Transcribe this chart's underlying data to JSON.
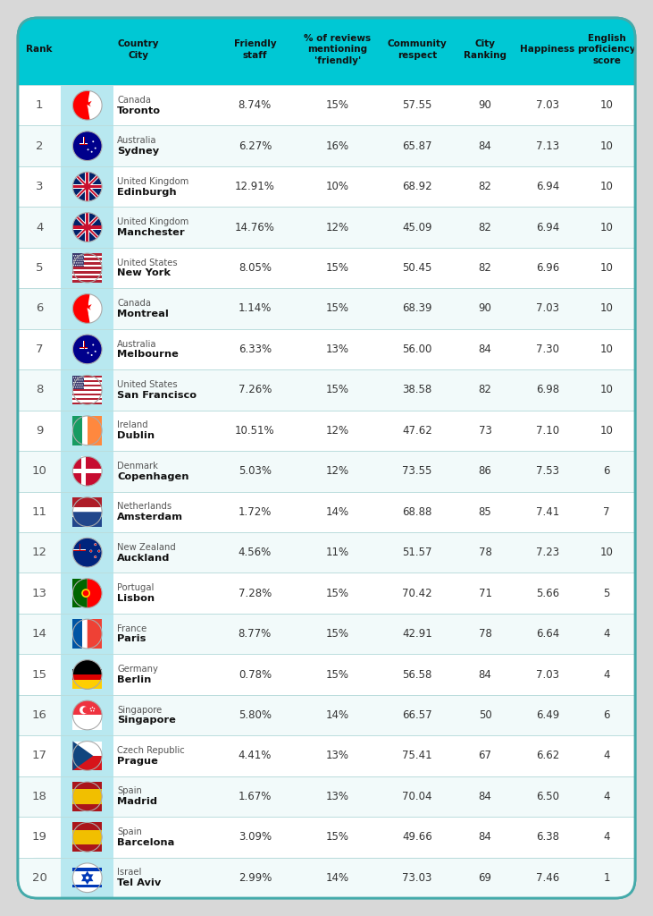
{
  "header_bg": "#00C8D4",
  "row_bg_even": "#FFFFFF",
  "row_bg_odd": "#F2FAFA",
  "flag_col_bg": "#B8E8F0",
  "divider_color": "#BBDDDD",
  "header_text_color": "#111111",
  "body_text_color": "#333333",
  "rank_text_color": "#555555",
  "country_text_color": "#555555",
  "city_text_color": "#111111",
  "outer_border_color": "#44AAAA",
  "outer_bg": "#D8D8D8",
  "headers": [
    "Rank",
    "Country\nCity",
    "Friendly\nstaff",
    "% of reviews\nmentioning\n'friendly'",
    "Community\nrespect",
    "City\nRanking",
    "Happiness",
    "English\nproficiency\nscore"
  ],
  "rows": [
    {
      "rank": 1,
      "country": "Canada",
      "city": "Toronto",
      "friendly_staff": "8.74%",
      "reviews": "15%",
      "community": "57.55",
      "city_ranking": "90",
      "happiness": "7.03",
      "english": "10"
    },
    {
      "rank": 2,
      "country": "Australia",
      "city": "Sydney",
      "friendly_staff": "6.27%",
      "reviews": "16%",
      "community": "65.87",
      "city_ranking": "84",
      "happiness": "7.13",
      "english": "10"
    },
    {
      "rank": 3,
      "country": "United Kingdom",
      "city": "Edinburgh",
      "friendly_staff": "12.91%",
      "reviews": "10%",
      "community": "68.92",
      "city_ranking": "82",
      "happiness": "6.94",
      "english": "10"
    },
    {
      "rank": 4,
      "country": "United Kingdom",
      "city": "Manchester",
      "friendly_staff": "14.76%",
      "reviews": "12%",
      "community": "45.09",
      "city_ranking": "82",
      "happiness": "6.94",
      "english": "10"
    },
    {
      "rank": 5,
      "country": "United States",
      "city": "New York",
      "friendly_staff": "8.05%",
      "reviews": "15%",
      "community": "50.45",
      "city_ranking": "82",
      "happiness": "6.96",
      "english": "10"
    },
    {
      "rank": 6,
      "country": "Canada",
      "city": "Montreal",
      "friendly_staff": "1.14%",
      "reviews": "15%",
      "community": "68.39",
      "city_ranking": "90",
      "happiness": "7.03",
      "english": "10"
    },
    {
      "rank": 7,
      "country": "Australia",
      "city": "Melbourne",
      "friendly_staff": "6.33%",
      "reviews": "13%",
      "community": "56.00",
      "city_ranking": "84",
      "happiness": "7.30",
      "english": "10"
    },
    {
      "rank": 8,
      "country": "United States",
      "city": "San Francisco",
      "friendly_staff": "7.26%",
      "reviews": "15%",
      "community": "38.58",
      "city_ranking": "82",
      "happiness": "6.98",
      "english": "10"
    },
    {
      "rank": 9,
      "country": "Ireland",
      "city": "Dublin",
      "friendly_staff": "10.51%",
      "reviews": "12%",
      "community": "47.62",
      "city_ranking": "73",
      "happiness": "7.10",
      "english": "10"
    },
    {
      "rank": 10,
      "country": "Denmark",
      "city": "Copenhagen",
      "friendly_staff": "5.03%",
      "reviews": "12%",
      "community": "73.55",
      "city_ranking": "86",
      "happiness": "7.53",
      "english": "6"
    },
    {
      "rank": 11,
      "country": "Netherlands",
      "city": "Amsterdam",
      "friendly_staff": "1.72%",
      "reviews": "14%",
      "community": "68.88",
      "city_ranking": "85",
      "happiness": "7.41",
      "english": "7"
    },
    {
      "rank": 12,
      "country": "New Zealand",
      "city": "Auckland",
      "friendly_staff": "4.56%",
      "reviews": "11%",
      "community": "51.57",
      "city_ranking": "78",
      "happiness": "7.23",
      "english": "10"
    },
    {
      "rank": 13,
      "country": "Portugal",
      "city": "Lisbon",
      "friendly_staff": "7.28%",
      "reviews": "15%",
      "community": "70.42",
      "city_ranking": "71",
      "happiness": "5.66",
      "english": "5"
    },
    {
      "rank": 14,
      "country": "France",
      "city": "Paris",
      "friendly_staff": "8.77%",
      "reviews": "15%",
      "community": "42.91",
      "city_ranking": "78",
      "happiness": "6.64",
      "english": "4"
    },
    {
      "rank": 15,
      "country": "Germany",
      "city": "Berlin",
      "friendly_staff": "0.78%",
      "reviews": "15%",
      "community": "56.58",
      "city_ranking": "84",
      "happiness": "7.03",
      "english": "4"
    },
    {
      "rank": 16,
      "country": "Singapore",
      "city": "Singapore",
      "friendly_staff": "5.80%",
      "reviews": "14%",
      "community": "66.57",
      "city_ranking": "50",
      "happiness": "6.49",
      "english": "6"
    },
    {
      "rank": 17,
      "country": "Czech Republic",
      "city": "Prague",
      "friendly_staff": "4.41%",
      "reviews": "13%",
      "community": "75.41",
      "city_ranking": "67",
      "happiness": "6.62",
      "english": "4"
    },
    {
      "rank": 18,
      "country": "Spain",
      "city": "Madrid",
      "friendly_staff": "1.67%",
      "reviews": "13%",
      "community": "70.04",
      "city_ranking": "84",
      "happiness": "6.50",
      "english": "4"
    },
    {
      "rank": 19,
      "country": "Spain",
      "city": "Barcelona",
      "friendly_staff": "3.09%",
      "reviews": "15%",
      "community": "49.66",
      "city_ranking": "84",
      "happiness": "6.38",
      "english": "4"
    },
    {
      "rank": 20,
      "country": "Israel",
      "city": "Tel Aviv",
      "friendly_staff": "2.99%",
      "reviews": "14%",
      "community": "73.03",
      "city_ranking": "69",
      "happiness": "7.46",
      "english": "1"
    }
  ]
}
